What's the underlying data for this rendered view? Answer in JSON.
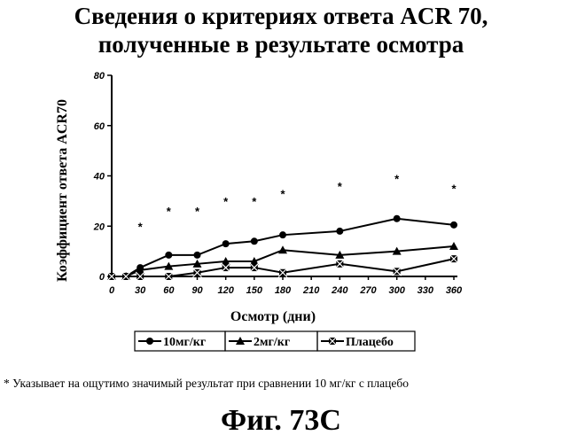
{
  "chart_data": {
    "type": "line",
    "title_lines": [
      "Сведения о критериях ответа ACR 70,",
      "полученные в результате осмотра"
    ],
    "xlabel": "Осмотр (дни)",
    "ylabel": "Коэффициент ответа ACR70",
    "x": [
      0,
      15,
      30,
      60,
      90,
      120,
      150,
      180,
      240,
      300,
      360
    ],
    "x_tick_labels": [
      "0",
      "30",
      "60",
      "90",
      "120",
      "150",
      "180",
      "210",
      "240",
      "270",
      "300",
      "330",
      "360"
    ],
    "y_ticks": [
      0,
      20,
      40,
      60,
      80
    ],
    "xlim": [
      0,
      360
    ],
    "ylim": [
      0,
      80
    ],
    "legend_position": "bottom",
    "series": [
      {
        "name": "10мг/кг",
        "marker": "circle",
        "values": [
          0,
          0,
          3.5,
          8.5,
          8.5,
          13,
          14,
          16.5,
          18,
          23,
          20.5
        ]
      },
      {
        "name": "2мг/кг",
        "marker": "triangle",
        "values": [
          0,
          0,
          2.5,
          4,
          5,
          6,
          6,
          10.5,
          8.5,
          10,
          12
        ]
      },
      {
        "name": "Плацебо",
        "marker": "x-box",
        "values": [
          0,
          0,
          0,
          0,
          1.5,
          3.5,
          3.5,
          1.5,
          5,
          2,
          7
        ]
      }
    ],
    "significance_markers": {
      "symbol": "*",
      "x": [
        30,
        60,
        90,
        120,
        150,
        180,
        240,
        300,
        360
      ],
      "y": [
        20,
        26,
        26,
        30,
        30,
        33,
        36,
        39,
        35
      ]
    }
  },
  "footnote": "* Указывает на ощутимо значимый результат при сравнении 10 мг/кг с плацебо",
  "figure_label": "Фиг. 73С"
}
